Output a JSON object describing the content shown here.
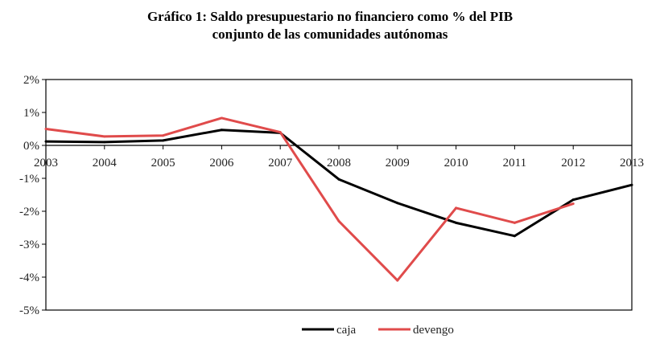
{
  "chart_data": {
    "type": "line",
    "title_line1": "Gráfico 1: Saldo presupuestario no financiero como % del PIB",
    "title_line2": "conjunto de las comunidades autónomas",
    "xlabel": "",
    "ylabel": "",
    "categories": [
      "2003",
      "2004",
      "2005",
      "2006",
      "2007",
      "2008",
      "2009",
      "2010",
      "2011",
      "2012",
      "2013"
    ],
    "yticks": [
      "2%",
      "1%",
      "0%",
      "-1%",
      "-2%",
      "-3%",
      "-4%",
      "-5%"
    ],
    "ytick_values": [
      2,
      1,
      0,
      -1,
      -2,
      -3,
      -4,
      -5
    ],
    "ylim": [
      -5,
      2
    ],
    "grid": false,
    "legend_position": "bottom",
    "series": [
      {
        "name": "caja",
        "color": "#000000",
        "values": [
          0.12,
          0.1,
          0.15,
          0.47,
          0.38,
          -1.03,
          -1.75,
          -2.35,
          -2.75,
          -1.65,
          -1.2
        ]
      },
      {
        "name": "devengo",
        "color": "#e04b4b",
        "values": [
          0.5,
          0.27,
          0.3,
          0.83,
          0.4,
          -2.3,
          -4.1,
          -1.9,
          -2.35,
          -1.77,
          null
        ]
      }
    ]
  }
}
